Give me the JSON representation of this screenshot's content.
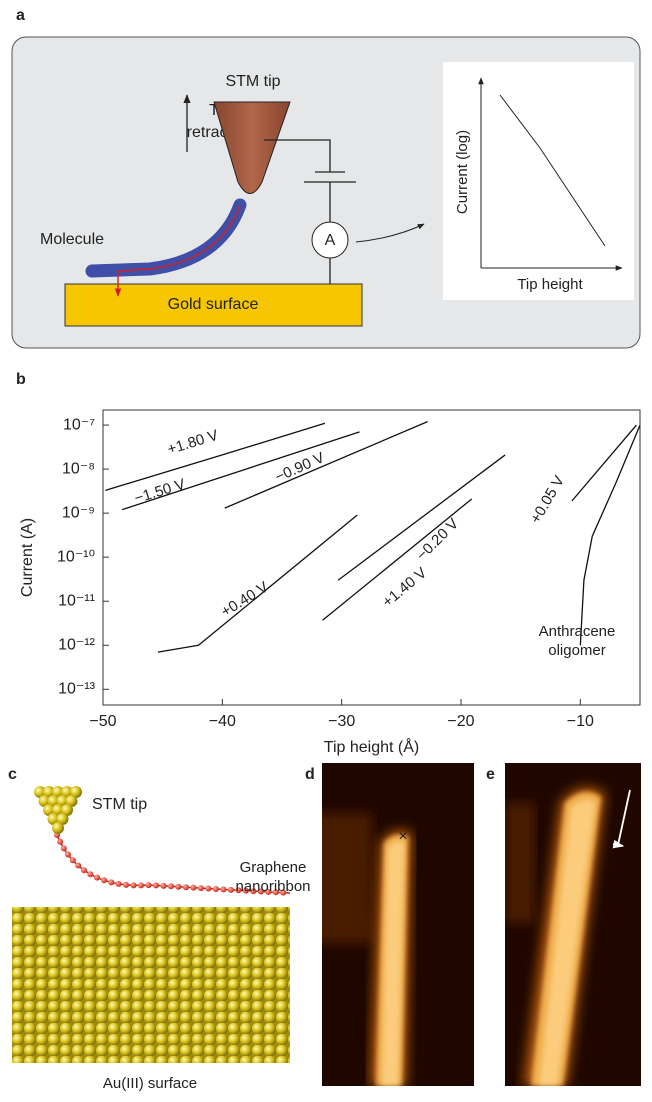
{
  "panel_labels": {
    "a": "a",
    "b": "b",
    "c": "c",
    "d": "d",
    "e": "e"
  },
  "panel_a": {
    "stm_tip": "STM tip",
    "tip_retraction": "Tip retraction",
    "molecule": "Molecule",
    "gold_surface": "Gold surface",
    "ammeter": "A",
    "inset_y_label": "Current (log)",
    "inset_x_label": "Tip height"
  },
  "chart_data": {
    "type": "line",
    "x_label": "Tip height (Å)",
    "y_label": "Current (A)",
    "xlim": [
      -50,
      -5
    ],
    "xticks": [
      {
        "value": -50,
        "label": "−50"
      },
      {
        "value": -40,
        "label": "−40"
      },
      {
        "value": -30,
        "label": "−30"
      },
      {
        "value": -20,
        "label": "−20"
      },
      {
        "value": -10,
        "label": "−10"
      }
    ],
    "ylim": [
      4.4e-14,
      2.2e-07
    ],
    "log_y": true,
    "yticks": [
      {
        "value": 1e-07,
        "label": "10⁻⁷"
      },
      {
        "value": 1e-08,
        "label": "10⁻⁸"
      },
      {
        "value": 1e-09,
        "label": "10⁻⁹"
      },
      {
        "value": 1e-10,
        "label": "10⁻¹⁰"
      },
      {
        "value": 1e-11,
        "label": "10⁻¹¹"
      },
      {
        "value": 1e-12,
        "label": "10⁻¹²"
      },
      {
        "value": 1e-13,
        "label": "10⁻¹³"
      }
    ],
    "series": [
      {
        "name": "+1.80 V",
        "color": "#111111",
        "x": [
          -49.8,
          -40,
          -31.4
        ],
        "values": [
          3.3e-09,
          2.1e-08,
          1.1e-07
        ]
      },
      {
        "name": "−1.50 V",
        "color": "#111111",
        "x": [
          -48.4,
          -28.5
        ],
        "values": [
          1.2e-09,
          7e-08
        ]
      },
      {
        "name": "−0.90 V",
        "color": "#111111",
        "x": [
          -39.8,
          -22.8
        ],
        "values": [
          1.3e-09,
          1.2e-07
        ]
      },
      {
        "name": "+0.40 V",
        "color": "#111111",
        "x": [
          -45.4,
          -42,
          -28.7
        ],
        "values": [
          7e-13,
          1e-12,
          9e-10
        ]
      },
      {
        "name": "−0.20 V",
        "color": "#111111",
        "x": [
          -30.3,
          -16.3
        ],
        "values": [
          3e-11,
          2.1e-08
        ]
      },
      {
        "name": "+1.40 V",
        "color": "#111111",
        "x": [
          -31.6,
          -19.1
        ],
        "values": [
          3.7e-12,
          2.1e-09
        ]
      },
      {
        "name": "+0.05 V",
        "color": "#111111",
        "x": [
          -10.7,
          -5.3
        ],
        "values": [
          1.9e-09,
          1e-07
        ]
      },
      {
        "name": "Anthracene oligomer",
        "color": "#111111",
        "x": [
          -10,
          -9.7,
          -9,
          -7,
          -5
        ],
        "values": [
          1e-12,
          3e-11,
          3e-10,
          5e-09,
          1e-07
        ]
      }
    ]
  },
  "panel_c": {
    "stm_tip": "STM tip",
    "ribbon": "Graphene nanoribbon",
    "surface": "Au(III) surface"
  },
  "panel_d": {
    "marker": "×"
  }
}
